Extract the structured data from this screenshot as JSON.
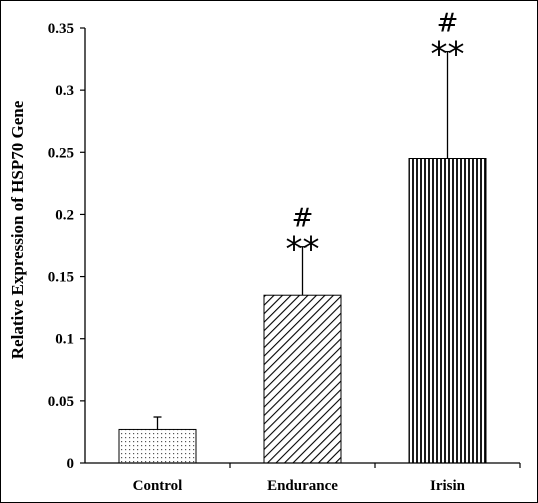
{
  "chart_data": {
    "type": "bar",
    "title": "",
    "xlabel": "",
    "ylabel": "Relative Expression of HSP70 Gene",
    "categories": [
      "Control",
      "Endurance",
      "Irisin"
    ],
    "values": [
      0.027,
      0.135,
      0.245
    ],
    "error_upper": [
      0.037,
      0.174,
      0.331
    ],
    "ylim": [
      0,
      0.35
    ],
    "yticks": [
      "0",
      "0.05",
      "0.1",
      "0.15",
      "0.2",
      "0.25",
      "0.3",
      "0.35"
    ],
    "ytick_values": [
      0,
      0.05,
      0.1,
      0.15,
      0.2,
      0.25,
      0.3,
      0.35
    ],
    "bar_patterns": [
      "dots",
      "diagonal-hatch",
      "vertical-stripes"
    ],
    "significance": [
      {
        "category": "Endurance",
        "hash": "#",
        "stars": "**"
      },
      {
        "category": "Irisin",
        "hash": "#",
        "stars": "**"
      }
    ],
    "grid": false,
    "legend": "none"
  }
}
